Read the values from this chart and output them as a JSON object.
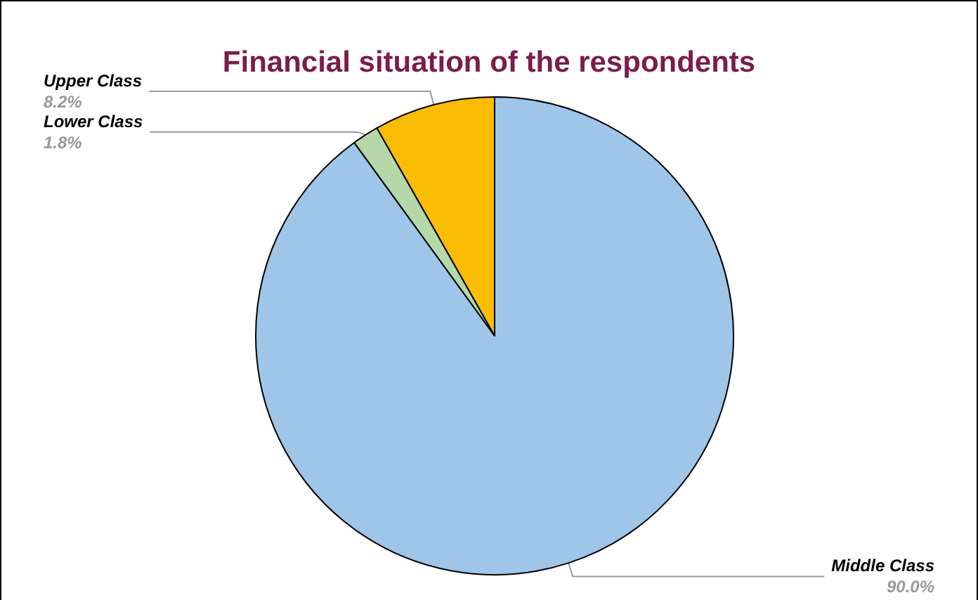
{
  "chart_data": {
    "type": "pie",
    "title": "Financial situation of the respondents",
    "categories": [
      "Middle Class",
      "Lower Class",
      "Upper Class"
    ],
    "values": [
      90.0,
      1.8,
      8.2
    ],
    "colors": [
      "#9fc5e8",
      "#b6d7a8",
      "#fbbc04"
    ],
    "value_labels": [
      "90.0%",
      "1.8%",
      "8.2%"
    ],
    "legend": false
  }
}
